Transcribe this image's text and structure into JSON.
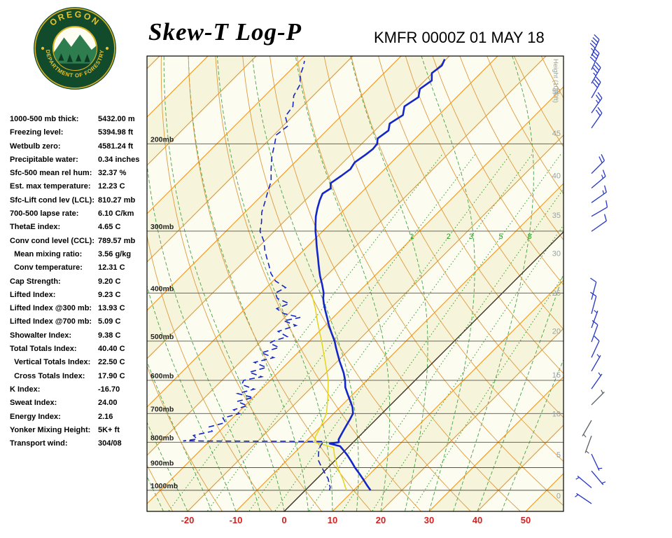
{
  "header": {
    "title": "Skew-T Log-P",
    "station_time": "KMFR 0000Z 01 MAY 18",
    "logo": {
      "top_text": "OREGON",
      "bottom_text": "DEPARTMENT OF FORESTRY"
    }
  },
  "stats": {
    "rows": [
      {
        "label": "1000-500 mb thick:",
        "value": "5432.00 m"
      },
      {
        "label": "Freezing level:",
        "value": "5394.98 ft"
      },
      {
        "label": "Wetbulb zero:",
        "value": "4581.24 ft"
      },
      {
        "label": "Precipitable water:",
        "value": "0.34 inches"
      },
      {
        "label": "Sfc-500 mean rel hum:",
        "value": "32.37 %"
      },
      {
        "label": "Est. max temperature:",
        "value": "12.23 C"
      },
      {
        "label": "Sfc-Lift cond lev (LCL):",
        "value": "810.27 mb"
      },
      {
        "label": "700-500 lapse rate:",
        "value": "6.10 C/km"
      },
      {
        "label": "ThetaE index:",
        "value": "4.65 C"
      },
      {
        "label": "Conv cond level (CCL):",
        "value": "789.57 mb"
      },
      {
        "label": "  Mean mixing ratio:",
        "value": "3.56 g/kg"
      },
      {
        "label": "  Conv temperature:",
        "value": "12.31 C"
      },
      {
        "label": "Cap Strength:",
        "value": "9.20 C"
      },
      {
        "label": "Lifted Index:",
        "value": "9.23 C"
      },
      {
        "label": "Lifted Index @300 mb:",
        "value": "13.93 C"
      },
      {
        "label": "Lifted Index @700 mb:",
        "value": "5.09 C"
      },
      {
        "label": "Showalter Index:",
        "value": "9.38 C"
      },
      {
        "label": "Total Totals Index:",
        "value": "40.40 C"
      },
      {
        "label": "  Vertical Totals Index:",
        "value": "22.50 C"
      },
      {
        "label": "  Cross Totals Index:",
        "value": "17.90 C"
      },
      {
        "label": "K Index:",
        "value": "-16.70"
      },
      {
        "label": "Sweat Index:",
        "value": "24.00"
      },
      {
        "label": "Energy Index:",
        "value": "2.16"
      },
      {
        "label": "Yonker Mixing Height:",
        "value": "5K+ ft"
      },
      {
        "label": "Transport wind:",
        "value": "304/08"
      }
    ]
  },
  "chart_data": {
    "type": "skewt-log-p",
    "temp_unit": "C",
    "pressure_unit": "mb",
    "x_axis": {
      "ticks": [
        -20,
        -10,
        0,
        10,
        20,
        30,
        40,
        50
      ]
    },
    "pressure_levels": [
      200,
      300,
      400,
      500,
      600,
      700,
      800,
      900,
      1000
    ],
    "height_axis": {
      "title": "Height (1000ft)",
      "labels": [
        {
          "value": "50",
          "frac": 0.077
        },
        {
          "value": "45",
          "frac": 0.169
        },
        {
          "value": "40",
          "frac": 0.262
        },
        {
          "value": "35",
          "frac": 0.349
        },
        {
          "value": "30",
          "frac": 0.433
        },
        {
          "value": "25",
          "frac": 0.52
        },
        {
          "value": "20",
          "frac": 0.604
        },
        {
          "value": "15",
          "frac": 0.7
        },
        {
          "value": "10",
          "frac": 0.785
        },
        {
          "value": "5",
          "frac": 0.875
        },
        {
          "value": "0",
          "frac": 0.965
        }
      ]
    },
    "isotherm_step": 10,
    "mixing_ratio_lines": [
      0.5,
      1,
      2,
      3,
      5,
      8,
      12,
      20
    ],
    "mixing_ratio_labels": [
      1,
      2,
      3,
      5,
      8
    ],
    "temperature_profile": [
      [
        1000,
        13.5
      ],
      [
        975,
        11.6
      ],
      [
        950,
        9.7
      ],
      [
        925,
        7.7
      ],
      [
        900,
        5.6
      ],
      [
        875,
        3.6
      ],
      [
        850,
        1.5
      ],
      [
        830,
        -0.4
      ],
      [
        815,
        -1.9
      ],
      [
        805,
        -4.6
      ],
      [
        800,
        -3.0
      ],
      [
        790,
        -3.6
      ],
      [
        775,
        -4.0
      ],
      [
        760,
        -4.4
      ],
      [
        740,
        -4.9
      ],
      [
        720,
        -5.4
      ],
      [
        700,
        -6.0
      ],
      [
        680,
        -7.4
      ],
      [
        660,
        -9.2
      ],
      [
        640,
        -11.1
      ],
      [
        620,
        -13.0
      ],
      [
        600,
        -14.5
      ],
      [
        580,
        -16.3
      ],
      [
        560,
        -18.4
      ],
      [
        550,
        -19.5
      ],
      [
        530,
        -21.6
      ],
      [
        515,
        -23.2
      ],
      [
        500,
        -24.8
      ],
      [
        480,
        -27.3
      ],
      [
        465,
        -29.2
      ],
      [
        450,
        -31.0
      ],
      [
        435,
        -32.9
      ],
      [
        420,
        -34.8
      ],
      [
        410,
        -36.0
      ],
      [
        400,
        -37.0
      ],
      [
        385,
        -39.0
      ],
      [
        370,
        -41.2
      ],
      [
        360,
        -42.6
      ],
      [
        350,
        -44.0
      ],
      [
        340,
        -45.4
      ],
      [
        330,
        -46.9
      ],
      [
        320,
        -48.4
      ],
      [
        310,
        -49.9
      ],
      [
        300,
        -51.5
      ],
      [
        290,
        -53.0
      ],
      [
        280,
        -54.5
      ],
      [
        270,
        -55.8
      ],
      [
        260,
        -57.0
      ],
      [
        252,
        -57.8
      ],
      [
        246,
        -57.2
      ],
      [
        240,
        -58.3
      ],
      [
        232,
        -57.6
      ],
      [
        225,
        -57.1
      ],
      [
        218,
        -57.6
      ],
      [
        210,
        -56.9
      ],
      [
        205,
        -56.6
      ],
      [
        200,
        -56.8
      ],
      [
        195,
        -57.8
      ],
      [
        188,
        -57.2
      ],
      [
        182,
        -58.4
      ],
      [
        175,
        -57.4
      ],
      [
        168,
        -58.9
      ],
      [
        161,
        -57.9
      ],
      [
        155,
        -59.3
      ],
      [
        149,
        -58.6
      ],
      [
        144,
        -60.1
      ],
      [
        139,
        -59.6
      ],
      [
        135,
        -60.3
      ]
    ],
    "dewpoint_profile": [
      [
        1000,
        5.0
      ],
      [
        985,
        4.5
      ],
      [
        970,
        3.5
      ],
      [
        950,
        2.5
      ],
      [
        930,
        1.0
      ],
      [
        910,
        -0.5
      ],
      [
        890,
        -2.0
      ],
      [
        870,
        -3.5
      ],
      [
        850,
        -4.5
      ],
      [
        830,
        -5.5
      ],
      [
        815,
        -6.0
      ],
      [
        805,
        -6.2
      ],
      [
        797,
        -6.3
      ],
      [
        795,
        -35.5
      ],
      [
        788,
        -33.0
      ],
      [
        775,
        -34.5
      ],
      [
        760,
        -31.5
      ],
      [
        745,
        -33.0
      ],
      [
        730,
        -30.5
      ],
      [
        715,
        -32.0
      ],
      [
        700,
        -29.5
      ],
      [
        688,
        -31.5
      ],
      [
        675,
        -29.5
      ],
      [
        662,
        -32.5
      ],
      [
        650,
        -30.0
      ],
      [
        638,
        -34.0
      ],
      [
        625,
        -31.5
      ],
      [
        612,
        -35.0
      ],
      [
        600,
        -35.5
      ],
      [
        590,
        -32.5
      ],
      [
        578,
        -36.0
      ],
      [
        565,
        -33.5
      ],
      [
        552,
        -37.0
      ],
      [
        540,
        -34.0
      ],
      [
        528,
        -37.5
      ],
      [
        515,
        -35.0
      ],
      [
        505,
        -37.8
      ],
      [
        500,
        -37.5
      ],
      [
        490,
        -35.5
      ],
      [
        478,
        -38.5
      ],
      [
        465,
        -36.0
      ],
      [
        455,
        -39.5
      ],
      [
        448,
        -36.8
      ],
      [
        440,
        -41.0
      ],
      [
        430,
        -43.5
      ],
      [
        420,
        -42.0
      ],
      [
        410,
        -45.5
      ],
      [
        400,
        -47.0
      ],
      [
        390,
        -46.0
      ],
      [
        378,
        -49.5
      ],
      [
        365,
        -52.0
      ],
      [
        352,
        -54.0
      ],
      [
        340,
        -56.0
      ],
      [
        328,
        -58.0
      ],
      [
        315,
        -60.0
      ],
      [
        300,
        -63.0
      ],
      [
        288,
        -64.5
      ],
      [
        275,
        -66.5
      ],
      [
        262,
        -68.0
      ],
      [
        250,
        -69.5
      ],
      [
        238,
        -71.0
      ],
      [
        225,
        -73.5
      ],
      [
        212,
        -76.0
      ],
      [
        200,
        -78.0
      ],
      [
        192,
        -79.5
      ],
      [
        184,
        -79.0
      ],
      [
        176,
        -81.5
      ],
      [
        168,
        -82.0
      ],
      [
        160,
        -84.0
      ],
      [
        152,
        -85.0
      ],
      [
        145,
        -87.0
      ],
      [
        140,
        -88.0
      ],
      [
        136,
        -89.0
      ]
    ],
    "wetbulb_profile": [
      [
        1000,
        8.5
      ],
      [
        950,
        5.5
      ],
      [
        900,
        2.0
      ],
      [
        850,
        -1.2
      ],
      [
        820,
        -3.0
      ],
      [
        800,
        -8.0
      ],
      [
        780,
        -9.0
      ],
      [
        750,
        -9.8
      ],
      [
        700,
        -11.5
      ],
      [
        650,
        -14.5
      ],
      [
        600,
        -18.0
      ],
      [
        550,
        -22.5
      ],
      [
        500,
        -27.5
      ],
      [
        460,
        -32.0
      ],
      [
        430,
        -35.5
      ],
      [
        400,
        -39.5
      ]
    ],
    "wind_barbs": [
      {
        "f": 0.0,
        "dir": 25,
        "spd": 45,
        "c": "b"
      },
      {
        "f": 0.03,
        "dir": 25,
        "spd": 40,
        "c": "b"
      },
      {
        "f": 0.06,
        "dir": 30,
        "spd": 35,
        "c": "b"
      },
      {
        "f": 0.092,
        "dir": 30,
        "spd": 30,
        "c": "b"
      },
      {
        "f": 0.125,
        "dir": 35,
        "spd": 25,
        "c": "b"
      },
      {
        "f": 0.158,
        "dir": 35,
        "spd": 20,
        "c": "b"
      },
      {
        "f": 0.258,
        "dir": 45,
        "spd": 20,
        "c": "b"
      },
      {
        "f": 0.29,
        "dir": 50,
        "spd": 15,
        "c": "b"
      },
      {
        "f": 0.322,
        "dir": 55,
        "spd": 15,
        "c": "b"
      },
      {
        "f": 0.352,
        "dir": 60,
        "spd": 10,
        "c": "b"
      },
      {
        "f": 0.385,
        "dir": 55,
        "spd": 10,
        "c": "b"
      },
      {
        "f": 0.535,
        "dir": 15,
        "spd": 10,
        "c": "b"
      },
      {
        "f": 0.566,
        "dir": 15,
        "spd": 10,
        "c": "b"
      },
      {
        "f": 0.597,
        "dir": 20,
        "spd": 5,
        "c": "b"
      },
      {
        "f": 0.628,
        "dir": 20,
        "spd": 10,
        "c": "b"
      },
      {
        "f": 0.662,
        "dir": 25,
        "spd": 10,
        "c": "b"
      },
      {
        "f": 0.692,
        "dir": 30,
        "spd": 5,
        "c": "b"
      },
      {
        "f": 0.731,
        "dir": 35,
        "spd": 5,
        "c": "b"
      },
      {
        "f": 0.766,
        "dir": 45,
        "spd": 5,
        "c": "g"
      },
      {
        "f": 0.8,
        "dir": 210,
        "spd": 5,
        "c": "g"
      },
      {
        "f": 0.834,
        "dir": 200,
        "spd": 5,
        "c": "g"
      },
      {
        "f": 0.874,
        "dir": 155,
        "spd": 5,
        "c": "b"
      },
      {
        "f": 0.911,
        "dir": 140,
        "spd": 5,
        "c": "b"
      },
      {
        "f": 0.948,
        "dir": 310,
        "spd": 8,
        "c": "b"
      },
      {
        "f": 0.983,
        "dir": 304,
        "spd": 8,
        "c": "b"
      }
    ],
    "colors": {
      "background_a": "#f6f4da",
      "background_b": "#fcfcf0",
      "isotherm": "#ea9520",
      "dry_adiabat": "#de9b40",
      "moist_adiabat": "#4aa04a",
      "mixing_ratio": "#2f9e2f",
      "zero_isotherm": "#2a2a2a",
      "pressure_line": "#555548",
      "temperature_line": "#1526c8",
      "dewpoint_line": "#1526c8",
      "wetbulb_line": "#e3d51c",
      "axis_red": "#d42020",
      "height_gray": "#97a1a9",
      "barb_blue": "#2536c8",
      "barb_gray": "#5a5f66"
    }
  }
}
